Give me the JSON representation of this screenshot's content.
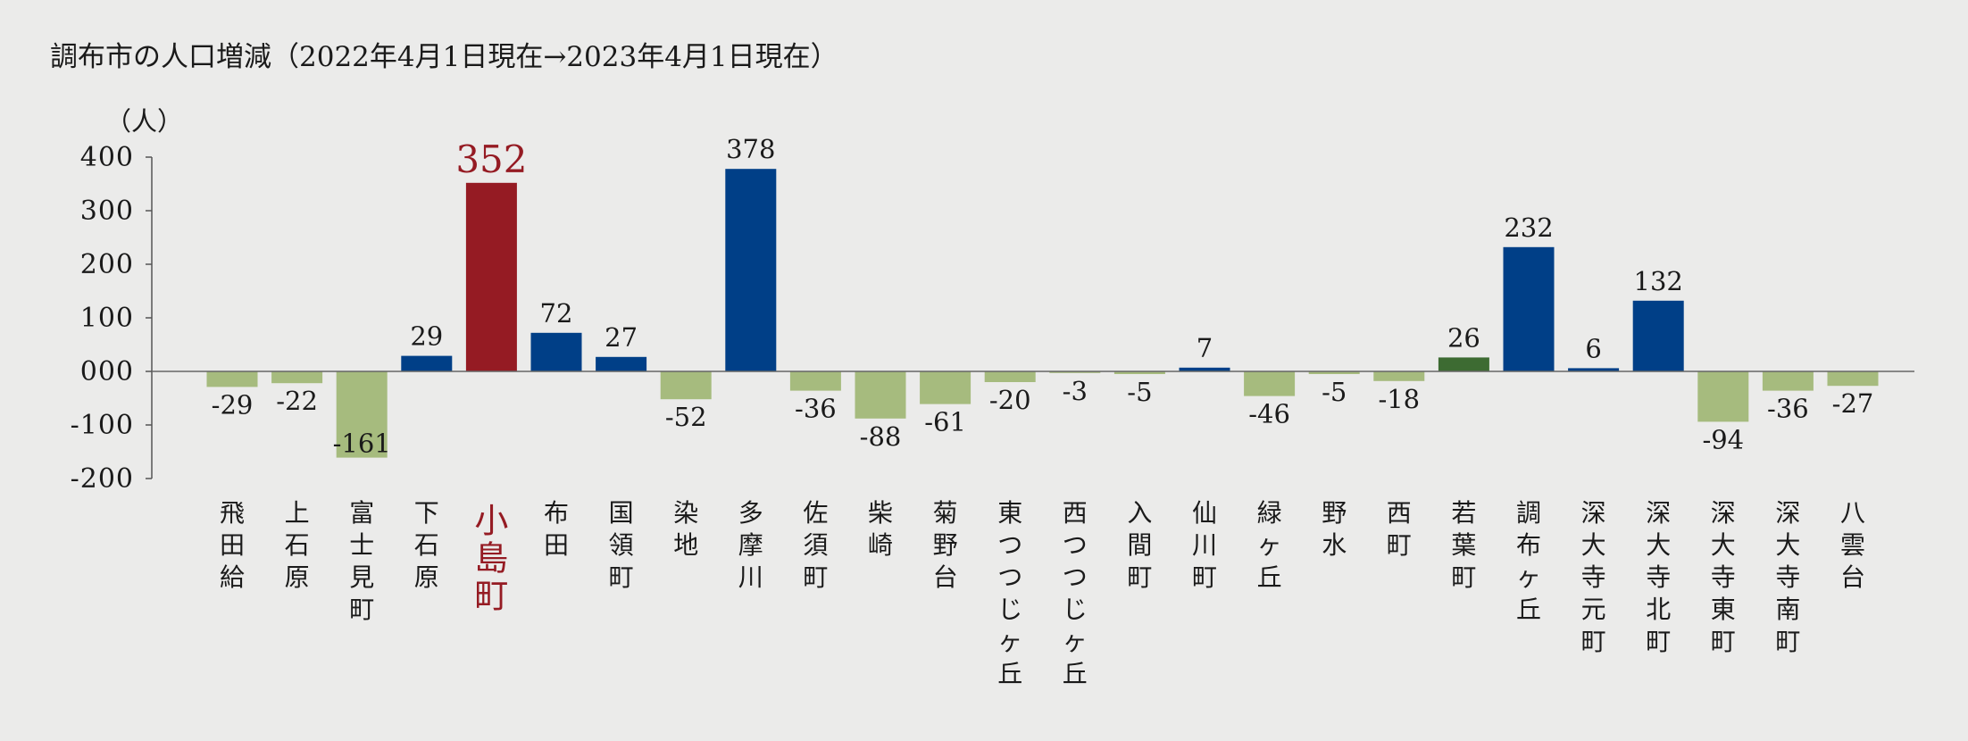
{
  "chart_data": {
    "type": "bar",
    "title": "調布市の人口増減（2022年4月1日現在→2023年4月1日現在）",
    "ylabel": "（人）",
    "ylim": [
      -200,
      400
    ],
    "yticks": [
      400,
      300,
      200,
      100,
      0,
      -100,
      -200
    ],
    "yticklabels": [
      "400",
      "300",
      "200",
      "100",
      "000",
      "-100",
      "-200"
    ],
    "grid": false,
    "highlight_index": 4,
    "colors": {
      "positive": "#003f87",
      "negative": "#a6bb7e",
      "highlight": "#951b23",
      "small_positive": "#3d6b32",
      "label_highlight": "#951b23"
    },
    "categories": [
      "飛田給",
      "上石原",
      "富士見町",
      "下石原",
      "小島町",
      "布田",
      "国領町",
      "染地",
      "多摩川",
      "佐須町",
      "柴崎",
      "菊野台",
      "東つつじヶ丘",
      "西つつじヶ丘",
      "入間町",
      "仙川町",
      "緑ヶ丘",
      "野水",
      "西町",
      "若葉町",
      "調布ヶ丘",
      "深大寺元町",
      "深大寺北町",
      "深大寺東町",
      "深大寺南町",
      "八雲台"
    ],
    "values": [
      -29,
      -22,
      -161,
      29,
      352,
      72,
      27,
      -52,
      378,
      -36,
      -88,
      -61,
      -20,
      -3,
      -5,
      7,
      -46,
      -5,
      -18,
      26,
      232,
      6,
      132,
      -94,
      -36,
      -27
    ],
    "value_labels": [
      "-29",
      "-22",
      "-161",
      "29",
      "352",
      "72",
      "27",
      "-52",
      "378",
      "-36",
      "-88",
      "-61",
      "-20",
      "-3",
      "-5",
      "7",
      "-46",
      "-5",
      "-18",
      "26",
      "232",
      "6",
      "132",
      "-94",
      "-36",
      "-27"
    ]
  }
}
